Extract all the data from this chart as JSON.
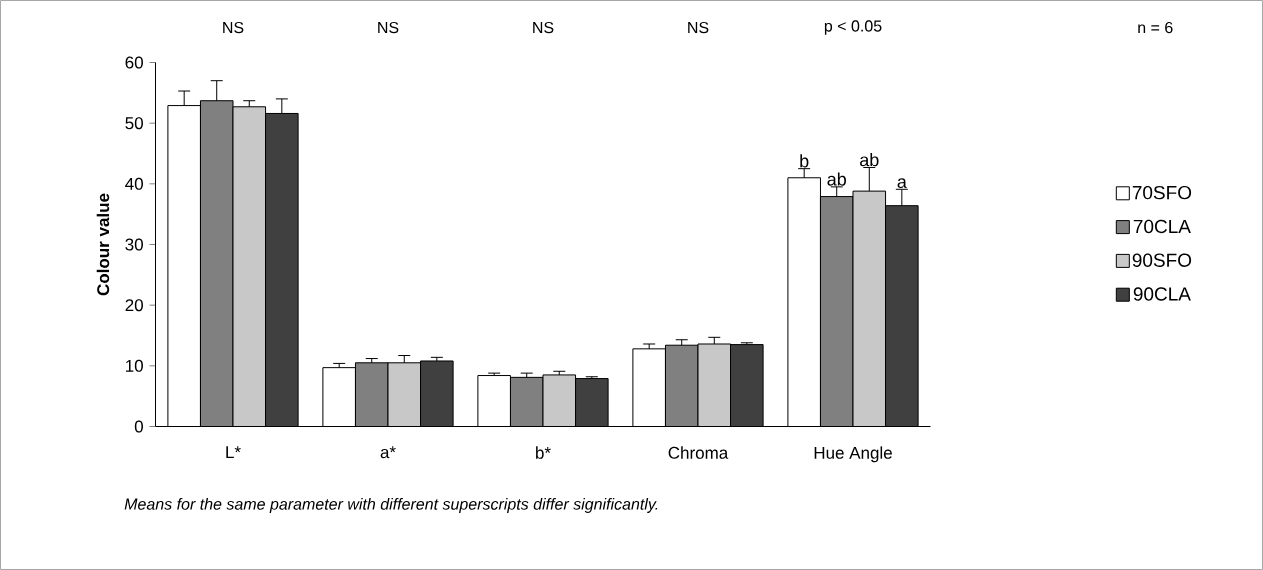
{
  "chart_data": {
    "type": "bar",
    "ylabel": "Colour value",
    "categories": [
      "L*",
      "a*",
      "b*",
      "Chroma",
      "Hue Angle"
    ],
    "series": [
      {
        "name": "70SFO",
        "color": "#ffffff",
        "values": [
          52.9,
          9.7,
          8.4,
          12.8,
          41.0
        ],
        "errors": [
          2.4,
          0.7,
          0.4,
          0.8,
          1.5
        ]
      },
      {
        "name": "70CLA",
        "color": "#808080",
        "values": [
          53.7,
          10.5,
          8.1,
          13.4,
          37.9
        ],
        "errors": [
          3.3,
          0.7,
          0.7,
          0.9,
          1.6
        ]
      },
      {
        "name": "90SFO",
        "color": "#c8c8c8",
        "values": [
          52.7,
          10.5,
          8.5,
          13.6,
          38.8
        ],
        "errors": [
          1.0,
          1.2,
          0.6,
          1.1,
          3.9
        ]
      },
      {
        "name": "90CLA",
        "color": "#404040",
        "values": [
          51.6,
          10.8,
          7.9,
          13.5,
          36.4
        ],
        "errors": [
          2.4,
          0.6,
          0.3,
          0.3,
          2.7
        ]
      }
    ],
    "ylim": [
      0,
      60
    ],
    "yticks": [
      0,
      10,
      20,
      30,
      40,
      50,
      60
    ],
    "grid": false,
    "legend": "right",
    "annotations": [
      "NS",
      "NS",
      "NS",
      "NS",
      "p < 0.05",
      "n = 6",
      "b",
      "ab",
      "ab",
      "a",
      "Means for the same parameter with different superscripts differ significantly."
    ]
  }
}
